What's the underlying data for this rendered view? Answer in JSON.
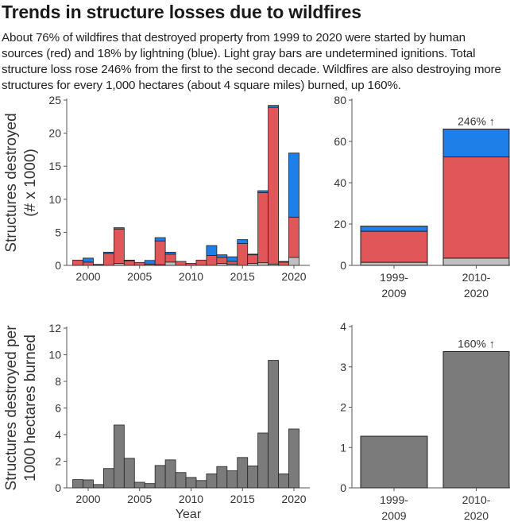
{
  "title": "Trends in structure losses due to wildfires",
  "description": "About 76% of wildfires that destroyed property from 1999 to 2020 were started by human sources (red) and 18% by lightning (blue). Light gray bars are undetermined ignitions. Total structure loss rose 246% from the first to the second decade. Wildfires are also destroying more structures for every 1,000 hectares (about 4 square miles) burned, up 160%.",
  "colors": {
    "human": "#e15759",
    "lightning": "#1f7fe8",
    "undetermined": "#c0c0c0",
    "per_hectare": "#7b7b7b"
  },
  "chart_data": [
    {
      "type": "bar",
      "stacked": true,
      "ylabel": [
        "Structures destroyed",
        "(# x 1000)"
      ],
      "ylim": [
        0,
        25
      ],
      "yticks": [
        "0",
        "5",
        "10",
        "15",
        "20",
        "25"
      ],
      "xticks": [
        "2000",
        "2005",
        "2010",
        "2015",
        "2020"
      ],
      "x": [
        1999,
        2000,
        2001,
        2002,
        2003,
        2004,
        2005,
        2006,
        2007,
        2008,
        2009,
        2010,
        2011,
        2012,
        2013,
        2014,
        2015,
        2016,
        2017,
        2018,
        2019,
        2020
      ],
      "series": [
        {
          "key": "undetermined",
          "values": [
            0,
            0,
            0,
            0,
            0.3,
            0,
            0,
            0,
            0.1,
            0.5,
            0,
            0,
            0,
            0,
            0.3,
            0.2,
            0,
            0.3,
            0.4,
            0.2,
            0,
            1.2
          ]
        },
        {
          "key": "human",
          "values": [
            0.8,
            0.5,
            0.1,
            1.8,
            5.2,
            0.7,
            0.45,
            0.2,
            3.6,
            1.2,
            0.6,
            0.3,
            0.8,
            1.5,
            0.9,
            0.4,
            3.3,
            1.3,
            10.6,
            23.7,
            0.5,
            6.1
          ]
        },
        {
          "key": "lightning",
          "values": [
            0,
            0.6,
            0.05,
            0.2,
            0.2,
            0.1,
            0,
            0.55,
            0.5,
            0.3,
            0,
            0,
            0,
            1.5,
            0.4,
            0.7,
            0.6,
            0.1,
            0.3,
            0.3,
            0.1,
            9.7
          ]
        }
      ]
    },
    {
      "type": "bar",
      "stacked": true,
      "ylim": [
        0,
        80
      ],
      "yticks": [
        "0",
        "20",
        "40",
        "60",
        "80"
      ],
      "categories": [
        "1999-\n2009",
        "2010-\n2020"
      ],
      "category_labels": [
        [
          "1999-",
          "2009"
        ],
        [
          "2010-",
          "2020"
        ]
      ],
      "series": [
        {
          "key": "undetermined",
          "values": [
            1.5,
            3.5
          ]
        },
        {
          "key": "human",
          "values": [
            15,
            49
          ]
        },
        {
          "key": "lightning",
          "values": [
            2.5,
            13.5
          ]
        }
      ],
      "annotation": "246% ↑"
    },
    {
      "type": "bar",
      "ylabel": [
        "Structures destroyed per",
        "1000 hectares burned"
      ],
      "xlabel": "Year",
      "ylim": [
        0,
        12
      ],
      "yticks": [
        "0",
        "2",
        "4",
        "6",
        "8",
        "10",
        "12"
      ],
      "xticks": [
        "2000",
        "2005",
        "2010",
        "2015",
        "2020"
      ],
      "x": [
        1999,
        2000,
        2001,
        2002,
        2003,
        2004,
        2005,
        2006,
        2007,
        2008,
        2009,
        2010,
        2011,
        2012,
        2013,
        2014,
        2015,
        2016,
        2017,
        2018,
        2019,
        2020
      ],
      "values": [
        0.62,
        0.6,
        0.25,
        1.45,
        4.72,
        2.22,
        0.42,
        0.32,
        1.68,
        2.1,
        1.15,
        0.78,
        0.55,
        1.05,
        1.6,
        1.28,
        2.28,
        1.65,
        4.12,
        9.58,
        1.05,
        4.42
      ]
    },
    {
      "type": "bar",
      "ylim": [
        0,
        4
      ],
      "yticks": [
        "0",
        "1",
        "2",
        "3",
        "4"
      ],
      "categories": [
        "1999-\n2009",
        "2010-\n2020"
      ],
      "category_labels": [
        [
          "1999-",
          "2009"
        ],
        [
          "2010-",
          "2020"
        ]
      ],
      "values": [
        1.28,
        3.38
      ],
      "annotation": "160% ↑"
    }
  ]
}
